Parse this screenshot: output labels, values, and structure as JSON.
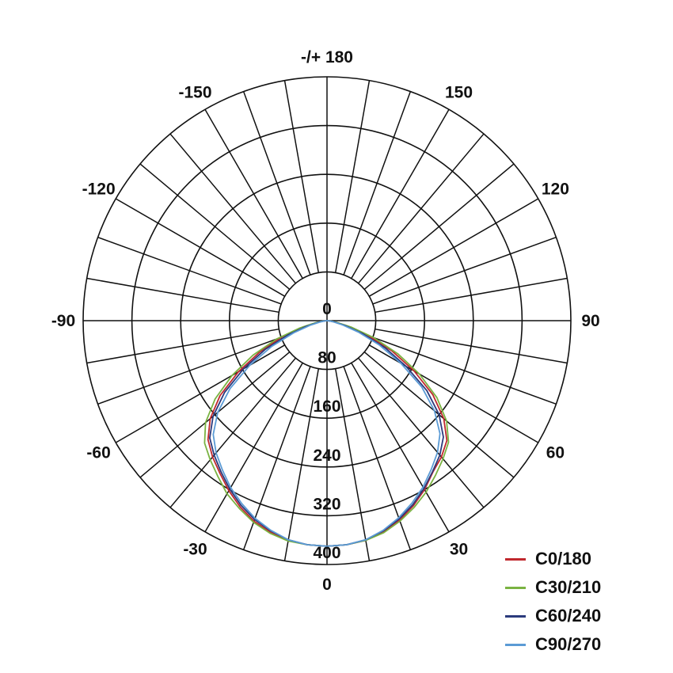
{
  "chart_data": {
    "type": "polar",
    "title": "",
    "angle_labels": [
      {
        "angle": 0,
        "text": "0"
      },
      {
        "angle": 30,
        "text": "30"
      },
      {
        "angle": 60,
        "text": "60"
      },
      {
        "angle": 90,
        "text": "90"
      },
      {
        "angle": 120,
        "text": "120"
      },
      {
        "angle": 150,
        "text": "150"
      },
      {
        "angle": 180,
        "text": "-/+ 180"
      },
      {
        "angle": -150,
        "text": "-150"
      },
      {
        "angle": -120,
        "text": "-120"
      },
      {
        "angle": -90,
        "text": "-90"
      },
      {
        "angle": -60,
        "text": "-60"
      },
      {
        "angle": -30,
        "text": "-30"
      }
    ],
    "radial_ticks": [
      0,
      80,
      160,
      240,
      320,
      400
    ],
    "rlim": [
      0,
      400
    ],
    "angle_grid_step": 10,
    "grid": true,
    "legend_placement": "bottom-right",
    "angles": [
      0,
      5,
      10,
      15,
      20,
      25,
      30,
      35,
      40,
      45,
      50,
      55,
      60,
      65,
      70,
      75,
      80,
      85,
      90
    ],
    "series": [
      {
        "name": "C0/180",
        "color": "#c0282d",
        "right": [
          370,
          369,
          366,
          358,
          348,
          335,
          320,
          303,
          292,
          278,
          250,
          212,
          165,
          118,
          72,
          36,
          14,
          4,
          0
        ],
        "left": [
          370,
          369,
          366,
          359,
          350,
          337,
          322,
          306,
          292,
          276,
          250,
          214,
          168,
          122,
          80,
          42,
          16,
          5,
          0
        ]
      },
      {
        "name": "C30/210",
        "color": "#7ab342",
        "right": [
          370,
          369,
          366,
          360,
          350,
          338,
          325,
          310,
          296,
          282,
          256,
          220,
          175,
          128,
          82,
          42,
          16,
          5,
          0
        ],
        "left": [
          370,
          369,
          367,
          361,
          352,
          340,
          328,
          312,
          298,
          284,
          260,
          224,
          180,
          134,
          88,
          46,
          18,
          6,
          0
        ]
      },
      {
        "name": "C60/240",
        "color": "#2b3a7c",
        "right": [
          370,
          369,
          365,
          357,
          346,
          333,
          318,
          302,
          288,
          270,
          240,
          200,
          150,
          105,
          62,
          30,
          12,
          4,
          0
        ],
        "left": [
          370,
          369,
          365,
          357,
          347,
          334,
          319,
          303,
          288,
          272,
          244,
          205,
          158,
          112,
          68,
          34,
          13,
          4,
          0
        ]
      },
      {
        "name": "C90/270",
        "color": "#5b9bd5",
        "right": [
          370,
          369,
          365,
          356,
          344,
          330,
          315,
          298,
          282,
          262,
          230,
          190,
          140,
          95,
          55,
          26,
          10,
          3,
          0
        ],
        "left": [
          370,
          369,
          365,
          356,
          345,
          331,
          316,
          299,
          283,
          264,
          234,
          194,
          146,
          100,
          58,
          28,
          11,
          3,
          0
        ]
      }
    ]
  }
}
